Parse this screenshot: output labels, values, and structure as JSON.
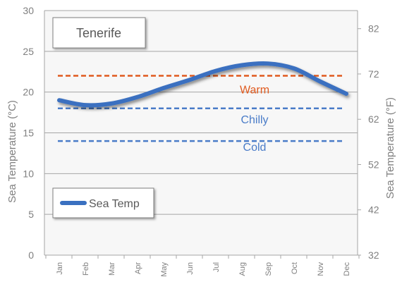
{
  "chart_data": {
    "type": "line",
    "title": "Tenerife",
    "categories": [
      "Jan",
      "Feb",
      "Mar",
      "Apr",
      "May",
      "Jun",
      "Jul",
      "Aug",
      "Sep",
      "Oct",
      "Nov",
      "Dec"
    ],
    "series": [
      {
        "name": "Sea Temp",
        "values": [
          19,
          18.4,
          18.6,
          19.4,
          20.5,
          21.5,
          22.6,
          23.3,
          23.5,
          22.9,
          21.3,
          19.8
        ],
        "color": "#3a70c0"
      }
    ],
    "reference_lines": [
      {
        "label": "Warm",
        "value": 22,
        "color": "#e05a1e"
      },
      {
        "label": "Chilly",
        "value": 18,
        "color": "#4a7cc8"
      },
      {
        "label": "Cold",
        "value": 14,
        "color": "#4a7cc8"
      }
    ],
    "ylabel": "Sea Temperature (°C)",
    "ylabel_right": "Sea Temperature (°F)",
    "ylim": [
      0,
      30
    ],
    "yticks": [
      0,
      5,
      10,
      15,
      20,
      25,
      30
    ],
    "yticks_right": [
      32,
      42,
      52,
      62,
      72,
      82
    ],
    "grid": true,
    "legend_position": "bottom-left"
  }
}
